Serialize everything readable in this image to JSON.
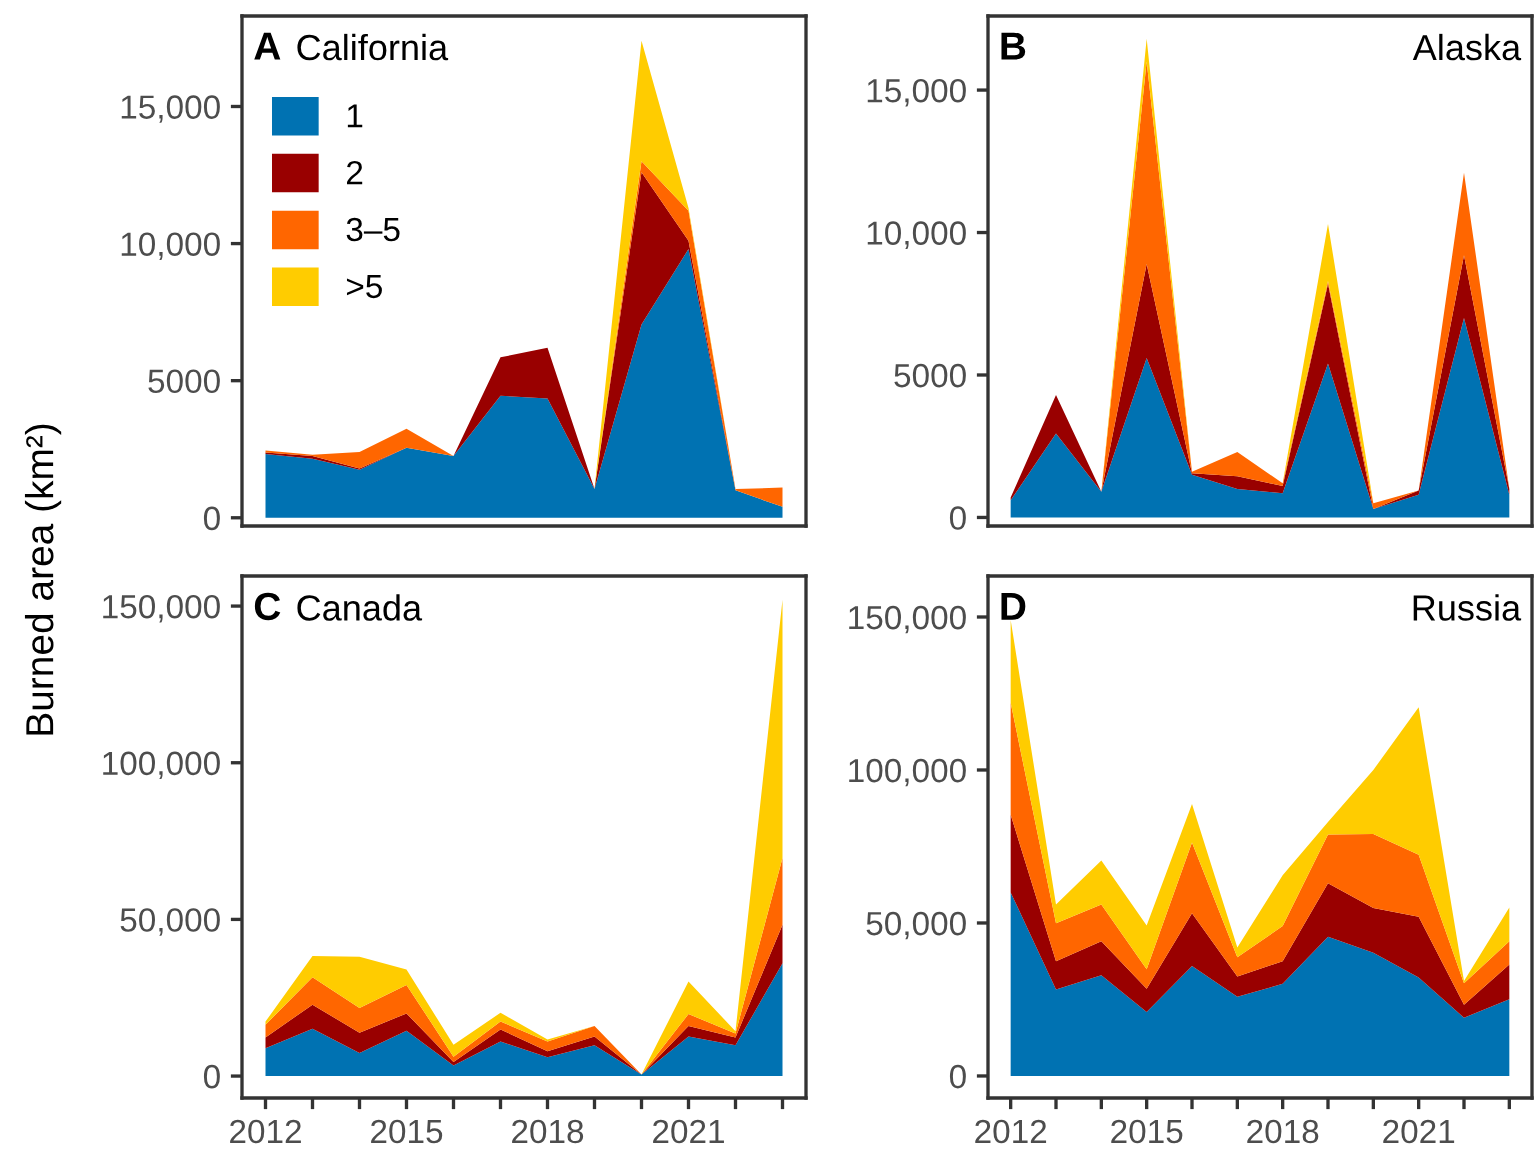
{
  "chart_data": [
    {
      "type": "area",
      "stacked": true,
      "title": "California",
      "annotations": [
        "A"
      ],
      "ylabel": "Burned area (km²)",
      "legend": "top left",
      "grid": false,
      "tick_labels": "y",
      "x": [
        2012,
        2013,
        2014,
        2015,
        2016,
        2017,
        2018,
        2019,
        2020,
        2021,
        2022,
        2023
      ],
      "xlim": [
        2011.5,
        2023.5
      ],
      "ylim": [
        -300,
        18300
      ],
      "yticks": [
        0,
        5000,
        {
          "value": 10000,
          "label": "10,000"
        },
        {
          "value": 15000,
          "label": "15,000"
        }
      ],
      "series": [
        {
          "name": "1",
          "color": "#0072b2",
          "values": [
            2330,
            2150,
            1750,
            2550,
            2250,
            4450,
            4350,
            1050,
            7050,
            9800,
            1000,
            400
          ]
        },
        {
          "name": "2",
          "color": "#990000",
          "values": [
            50,
            100,
            50,
            0,
            0,
            1400,
            1850,
            0,
            5550,
            300,
            0,
            0
          ]
        },
        {
          "name": "3–5",
          "color": "#ff6600",
          "values": [
            70,
            50,
            600,
            700,
            0,
            0,
            0,
            0,
            400,
            1100,
            50,
            700
          ]
        },
        {
          "name": ">5",
          "color": "#ffcc00",
          "values": [
            0,
            0,
            0,
            0,
            0,
            0,
            0,
            0,
            4400,
            100,
            0,
            0
          ]
        }
      ]
    },
    {
      "type": "area",
      "stacked": true,
      "title": "Alaska",
      "annotations": [
        "B"
      ],
      "grid": false,
      "tick_labels": "y",
      "x": [
        2012,
        2013,
        2014,
        2015,
        2016,
        2017,
        2018,
        2019,
        2020,
        2021,
        2022,
        2023
      ],
      "xlim": [
        2011.5,
        2023.5
      ],
      "ylim": [
        -300,
        17600
      ],
      "yticks": [
        0,
        5000,
        {
          "value": 10000,
          "label": "10,000"
        },
        {
          "value": 15000,
          "label": "15,000"
        }
      ],
      "series": [
        {
          "color": "#0072b2",
          "values": [
            600,
            2950,
            900,
            5600,
            1500,
            1000,
            850,
            5400,
            300,
            800,
            7000,
            800
          ]
        },
        {
          "color": "#990000",
          "values": [
            100,
            1350,
            0,
            3300,
            50,
            450,
            250,
            2800,
            0,
            150,
            2200,
            200
          ]
        },
        {
          "color": "#ff6600",
          "values": [
            0,
            0,
            0,
            7100,
            50,
            850,
            100,
            100,
            200,
            0,
            2900,
            0
          ]
        },
        {
          "color": "#ffcc00",
          "values": [
            0,
            0,
            0,
            800,
            0,
            0,
            0,
            2000,
            0,
            0,
            0,
            0
          ]
        }
      ]
    },
    {
      "type": "area",
      "stacked": true,
      "title": "Canada",
      "annotations": [
        "C"
      ],
      "grid": false,
      "x": [
        2012,
        2013,
        2014,
        2015,
        2016,
        2017,
        2018,
        2019,
        2020,
        2021,
        2022,
        2023
      ],
      "xlim": [
        2011.5,
        2023.5
      ],
      "ylim": [
        -7000,
        159600
      ],
      "xticks": [
        2012,
        {
          "value": 2013,
          "label": null
        },
        {
          "value": 2014,
          "label": null
        },
        2015,
        {
          "value": 2016,
          "label": null
        },
        {
          "value": 2017,
          "label": null
        },
        2018,
        {
          "value": 2019,
          "label": null
        },
        {
          "value": 2020,
          "label": null
        },
        2021,
        {
          "value": 2022,
          "label": null
        },
        {
          "value": 2023,
          "label": null
        }
      ],
      "yticks": [
        0,
        {
          "value": 50000,
          "label": "50,000"
        },
        {
          "value": 100000,
          "label": "100,000"
        },
        {
          "value": 150000,
          "label": "150,000"
        }
      ],
      "series": [
        {
          "color": "#0072b2",
          "values": [
            8900,
            15100,
            7400,
            14500,
            3400,
            11000,
            6000,
            9800,
            500,
            12600,
            9800,
            36000
          ]
        },
        {
          "color": "#990000",
          "values": [
            3400,
            7700,
            6400,
            5500,
            1100,
            3900,
            1900,
            2800,
            0,
            3400,
            2500,
            12300
          ]
        },
        {
          "color": "#ff6600",
          "values": [
            4100,
            8700,
            7900,
            9100,
            1700,
            2500,
            3100,
            3400,
            0,
            3800,
            1300,
            21300
          ]
        },
        {
          "color": "#ffcc00",
          "values": [
            1000,
            6800,
            16400,
            4900,
            3800,
            2800,
            700,
            0,
            0,
            10400,
            700,
            82400
          ]
        }
      ]
    },
    {
      "type": "area",
      "stacked": true,
      "title": "Russia",
      "annotations": [
        "D"
      ],
      "grid": false,
      "x": [
        2012,
        2013,
        2014,
        2015,
        2016,
        2017,
        2018,
        2019,
        2020,
        2021,
        2022,
        2023
      ],
      "xlim": [
        2011.5,
        2023.5
      ],
      "ylim": [
        -7200,
        163400
      ],
      "xticks": [
        2012,
        {
          "value": 2013,
          "label": null
        },
        {
          "value": 2014,
          "label": null
        },
        2015,
        {
          "value": 2016,
          "label": null
        },
        {
          "value": 2017,
          "label": null
        },
        2018,
        {
          "value": 2019,
          "label": null
        },
        {
          "value": 2020,
          "label": null
        },
        2021,
        {
          "value": 2022,
          "label": null
        },
        {
          "value": 2023,
          "label": null
        }
      ],
      "yticks": [
        0,
        {
          "value": 50000,
          "label": "50,000"
        },
        {
          "value": 100000,
          "label": "100,000"
        },
        {
          "value": 150000,
          "label": "150,000"
        }
      ],
      "series": [
        {
          "color": "#0072b2",
          "values": [
            60000,
            28300,
            32900,
            20900,
            35900,
            25900,
            30100,
            45500,
            40300,
            32200,
            19000,
            25100
          ]
        },
        {
          "color": "#990000",
          "values": [
            25400,
            9200,
            11100,
            7600,
            17300,
            6600,
            7400,
            17500,
            14600,
            19800,
            4300,
            11300
          ]
        },
        {
          "color": "#ff6600",
          "values": [
            36600,
            12400,
            12000,
            6400,
            23100,
            6300,
            11500,
            15900,
            24200,
            20300,
            7000,
            7600
          ]
        },
        {
          "color": "#ffcc00",
          "values": [
            27000,
            6100,
            14400,
            14300,
            12600,
            3200,
            16600,
            4100,
            20900,
            48200,
            700,
            11100
          ]
        }
      ]
    }
  ]
}
